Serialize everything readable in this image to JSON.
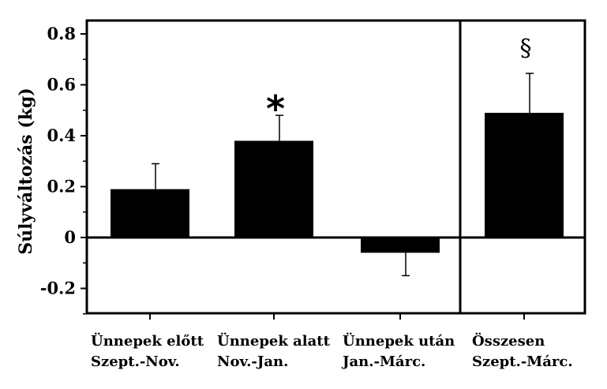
{
  "chart_data": {
    "type": "bar",
    "ylabel": "Súlyváltozás (kg)",
    "ylim": [
      -0.3,
      0.8
    ],
    "yticks": [
      {
        "value": 0.8,
        "label": "0.8"
      },
      {
        "value": 0.6,
        "label": "0.6"
      },
      {
        "value": 0.4,
        "label": "0.4"
      },
      {
        "value": 0.2,
        "label": "0.2"
      },
      {
        "value": 0,
        "label": "0"
      },
      {
        "value": -0.2,
        "label": "-0.2"
      }
    ],
    "categories": [
      {
        "line1": "Ünnepek előtt",
        "line2": "Szept.-Nov."
      },
      {
        "line1": "Ünnepek alatt",
        "line2": "Nov.-Jan."
      },
      {
        "line1": "Ünnepek után",
        "line2": "Jan.-Márc."
      },
      {
        "line1": "Összesen",
        "line2": "Szept.-Márc."
      }
    ],
    "values": [
      0.19,
      0.38,
      -0.06,
      0.49
    ],
    "errors": [
      0.1,
      0.1,
      0.09,
      0.155
    ],
    "annotations": [
      "",
      "*",
      "",
      "§"
    ],
    "grid": false,
    "colors": {
      "bar": "#000000",
      "axis": "#000000"
    }
  }
}
